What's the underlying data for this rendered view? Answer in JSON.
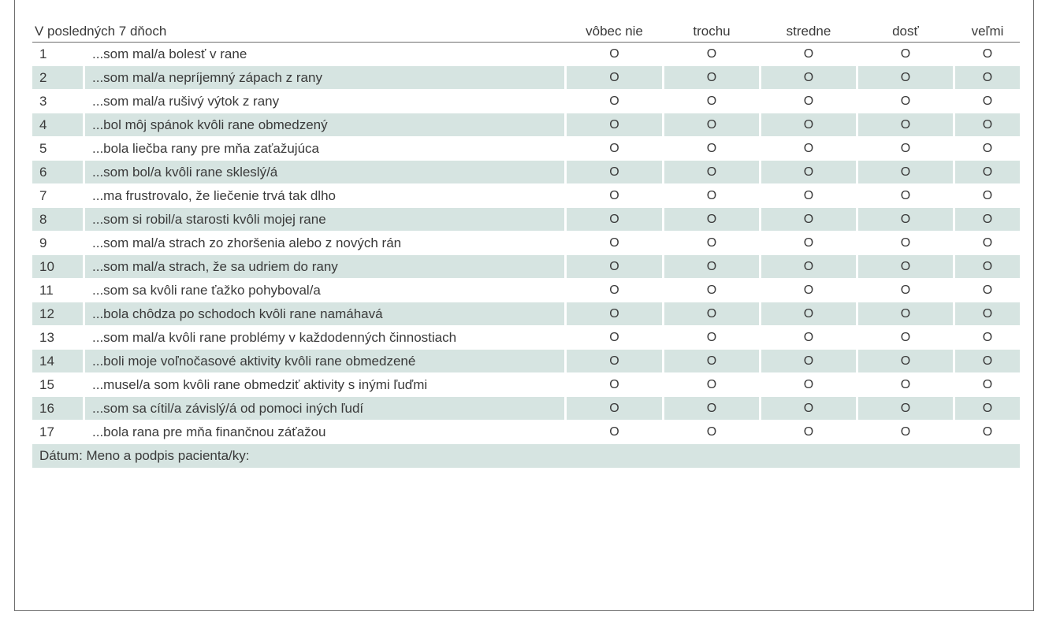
{
  "header": {
    "title": "V posledných 7 dňoch",
    "options": [
      "vôbec nie",
      "trochu",
      "stredne",
      "dosť",
      "veľmi"
    ]
  },
  "option_symbol": "O",
  "rows": [
    {
      "num": "1",
      "text": "...som mal/a bolesť v rane"
    },
    {
      "num": "2",
      "text": "...som mal/a nepríjemný zápach z rany"
    },
    {
      "num": "3",
      "text": "...som mal/a rušivý výtok z rany"
    },
    {
      "num": "4",
      "text": "...bol môj spánok kvôli rane obmedzený"
    },
    {
      "num": "5",
      "text": "...bola liečba rany pre mňa zaťažujúca"
    },
    {
      "num": "6",
      "text": "...som bol/a kvôli rane skleslý/á"
    },
    {
      "num": "7",
      "text": "...ma frustrovalo, že liečenie trvá tak dlho"
    },
    {
      "num": "8",
      "text": "...som si robil/a starosti kvôli mojej rane"
    },
    {
      "num": "9",
      "text": "...som mal/a strach zo zhoršenia alebo z nových rán"
    },
    {
      "num": "10",
      "text": "...som mal/a strach, že sa udriem do rany"
    },
    {
      "num": "11",
      "text": "...som sa kvôli rane ťažko pohyboval/a"
    },
    {
      "num": "12",
      "text": "...bola chôdza po schodoch kvôli rane namáhavá"
    },
    {
      "num": "13",
      "text": "...som mal/a kvôli rane problémy v každodenných činnostiach"
    },
    {
      "num": "14",
      "text": "...boli moje voľnočasové aktivity kvôli rane obmedzené"
    },
    {
      "num": "15",
      "text": "...musel/a som kvôli rane obmedziť aktivity s inými ľuďmi"
    },
    {
      "num": "16",
      "text": "...som sa cítil/a závislý/á od pomoci iných ľudí"
    },
    {
      "num": "17",
      "text": "...bola rana pre mňa finančnou záťažou"
    }
  ],
  "footer": {
    "text": "Dátum: Meno a podpis pacienta/ky:"
  },
  "colors": {
    "shaded_row": "#d6e4e1",
    "text": "#3a3a3a",
    "border": "#6e6e6e"
  }
}
